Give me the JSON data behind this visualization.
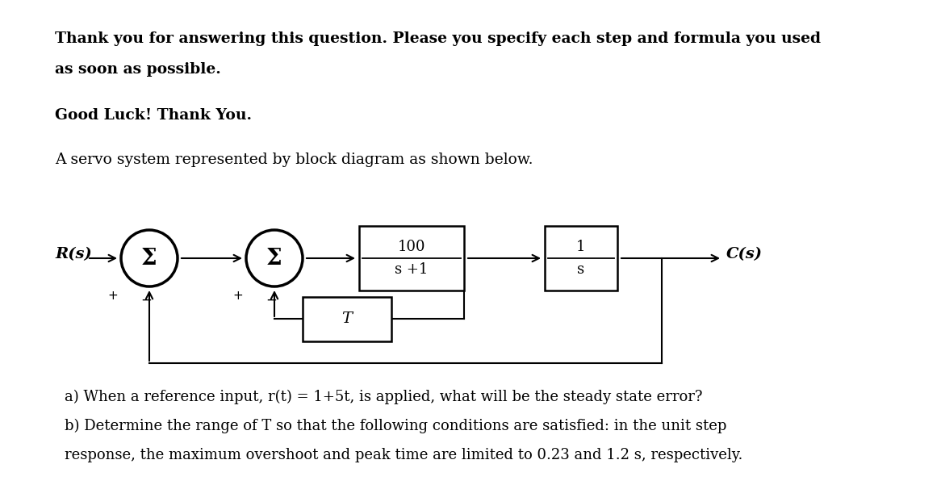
{
  "title_line1": "Thank you for answering this question. Please you specify each step and formula you used",
  "title_line2": "as soon as possible.",
  "title_line3": "Good Luck! Thank You.",
  "title_line4": "A servo system represented by block diagram as shown below.",
  "question_a": "a) When a reference input, r(t) = 1+5t, is applied, what will be the steady state error?",
  "question_b": "b) Determine the range of T so that the following conditions are satisfied: in the unit step",
  "question_c": "response, the maximum overshoot and peak time are limited to 0.23 and 1.2 s, respectively.",
  "Rs_label": "R(s)",
  "Cs_label": "C(s)",
  "sigma_label": "Σ",
  "block1_num": "100",
  "block1_den": "s +1",
  "block2_num": "1",
  "block2_den": "s",
  "T_label": "T",
  "bg_color": "#ffffff",
  "text_color": "#000000"
}
